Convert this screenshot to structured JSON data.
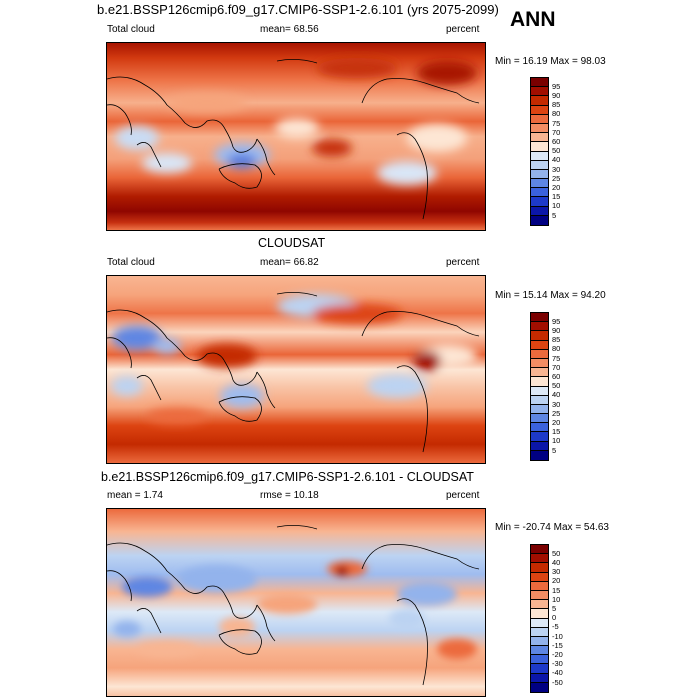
{
  "header": {
    "title": "b.e21.BSSP126cmip6.f09_g17.CMIP6-SSP1-2.6.101 (yrs 2075-2099)",
    "season": "ANN"
  },
  "panels": [
    {
      "left_label": "Total cloud",
      "mean_text": "mean=  68.56",
      "units": "percent",
      "range_text": "Min =  16.19 Max =  98.03",
      "colorbar": {
        "labels": [
          "95",
          "90",
          "85",
          "80",
          "75",
          "70",
          "60",
          "50",
          "40",
          "30",
          "25",
          "20",
          "15",
          "10",
          "5"
        ],
        "colors": [
          "#7a0000",
          "#a10e00",
          "#c42a00",
          "#dd4412",
          "#ec6a3d",
          "#f38d64",
          "#f8b592",
          "#fde6d4",
          "#dde9f7",
          "#bcd3f2",
          "#93b3ec",
          "#5e86e3",
          "#3b62dc",
          "#1d39c9",
          "#0b16a8",
          "#000082"
        ]
      }
    },
    {
      "panel_title": "CLOUDSAT",
      "left_label": "Total cloud",
      "mean_text": "mean=  66.82",
      "units": "percent",
      "range_text": "Min =  15.14 Max =  94.20",
      "colorbar": {
        "labels": [
          "95",
          "90",
          "85",
          "80",
          "75",
          "70",
          "60",
          "50",
          "40",
          "30",
          "25",
          "20",
          "15",
          "10",
          "5"
        ],
        "colors": [
          "#7a0000",
          "#a10e00",
          "#c42a00",
          "#dd4412",
          "#ec6a3d",
          "#f38d64",
          "#f8b592",
          "#fde6d4",
          "#dde9f7",
          "#bcd3f2",
          "#93b3ec",
          "#5e86e3",
          "#3b62dc",
          "#1d39c9",
          "#0b16a8",
          "#000082"
        ]
      }
    },
    {
      "panel_title": "b.e21.BSSP126cmip6.f09_g17.CMIP6-SSP1-2.6.101 - CLOUDSAT",
      "left_label": "mean =   1.74",
      "mean_text": "rmse =  10.18",
      "units": "percent",
      "range_text": "Min = -20.74 Max =  54.63",
      "colorbar": {
        "labels": [
          "50",
          "40",
          "30",
          "20",
          "15",
          "10",
          "5",
          "0",
          "-5",
          "-10",
          "-15",
          "-20",
          "-30",
          "-40",
          "-50"
        ],
        "colors": [
          "#7a0000",
          "#a10e00",
          "#c42a00",
          "#dd4412",
          "#ec6a3d",
          "#f38d64",
          "#f8b592",
          "#fde6d4",
          "#dde9f7",
          "#bcd3f2",
          "#93b3ec",
          "#5e86e3",
          "#3b62dc",
          "#1d39c9",
          "#0b16a8",
          "#000082"
        ]
      }
    }
  ]
}
